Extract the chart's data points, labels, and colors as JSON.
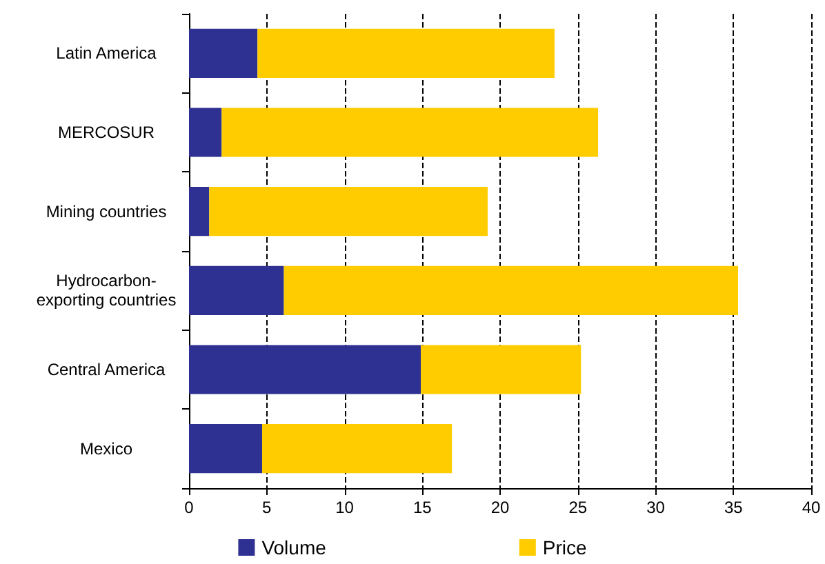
{
  "chart_data": {
    "type": "bar",
    "orientation": "horizontal",
    "stacked": true,
    "categories": [
      "Latin America",
      "MERCOSUR",
      "Mining countries",
      "Hydrocarbon-\nexporting countries",
      "Central America",
      "Mexico"
    ],
    "series": [
      {
        "name": "Volume",
        "color": "#2e3192",
        "values": [
          4.4,
          2.1,
          1.3,
          6.1,
          14.9,
          4.7
        ]
      },
      {
        "name": "Price",
        "color": "#ffcc00",
        "values": [
          19.1,
          24.2,
          17.9,
          29.2,
          10.3,
          12.2
        ]
      }
    ],
    "xlim": [
      0,
      40
    ],
    "xticks": [
      0,
      5,
      10,
      15,
      20,
      25,
      30,
      35,
      40
    ],
    "grid": "x",
    "legend": "bottom"
  }
}
